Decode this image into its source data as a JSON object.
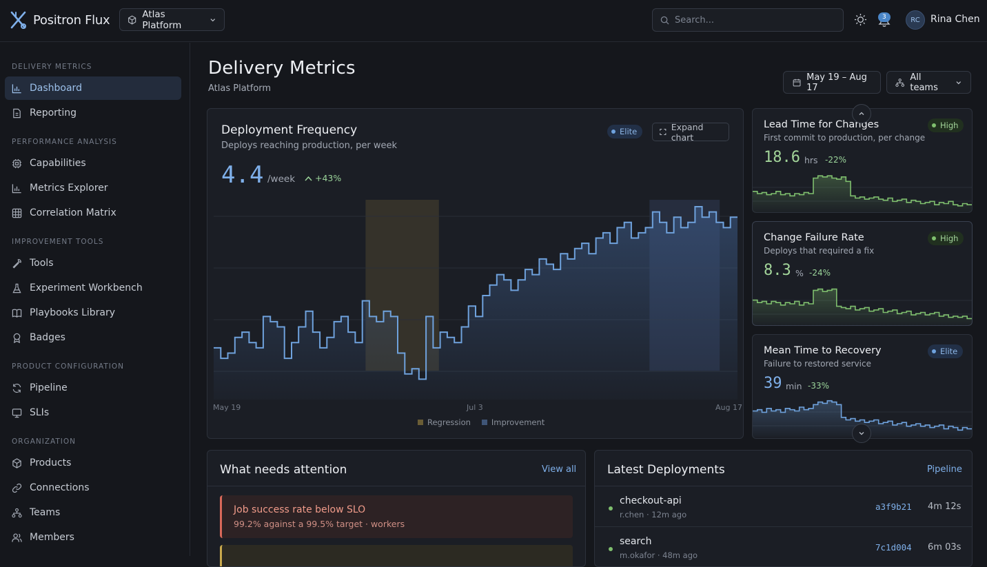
{
  "app": {
    "name": "Positron Flux",
    "project": "Atlas Platform"
  },
  "header": {
    "search_placeholder": "Search...",
    "notifications": "3",
    "user_initials": "RC",
    "user_name": "Rina Chen"
  },
  "sidebar": {
    "sections": [
      {
        "label": "DELIVERY METRICS",
        "items": [
          {
            "label": "Dashboard",
            "icon": "bar-chart-icon",
            "active": true
          },
          {
            "label": "Reporting",
            "icon": "document-icon"
          }
        ]
      },
      {
        "label": "PERFORMANCE ANALYSIS",
        "items": [
          {
            "label": "Capabilities",
            "icon": "chip-icon"
          },
          {
            "label": "Metrics Explorer",
            "icon": "bar-chart-icon"
          },
          {
            "label": "Correlation Matrix",
            "icon": "grid-icon"
          }
        ]
      },
      {
        "label": "IMPROVEMENT TOOLS",
        "items": [
          {
            "label": "Tools",
            "icon": "wrench-icon"
          },
          {
            "label": "Experiment Workbench",
            "icon": "flask-icon"
          },
          {
            "label": "Playbooks Library",
            "icon": "book-icon"
          },
          {
            "label": "Badges",
            "icon": "award-icon"
          }
        ]
      },
      {
        "label": "PRODUCT CONFIGURATION",
        "items": [
          {
            "label": "Pipeline",
            "icon": "refresh-icon"
          },
          {
            "label": "SLIs",
            "icon": "monitor-icon"
          }
        ]
      },
      {
        "label": "ORGANIZATION",
        "items": [
          {
            "label": "Products",
            "icon": "box-icon"
          },
          {
            "label": "Connections",
            "icon": "link-icon"
          },
          {
            "label": "Teams",
            "icon": "network-icon"
          },
          {
            "label": "Members",
            "icon": "users-icon"
          }
        ]
      }
    ]
  },
  "page": {
    "title": "Delivery Metrics",
    "subtitle": "Atlas Platform",
    "date_range": "May 19 – Aug 17",
    "team_filter": "All teams"
  },
  "deploy_freq": {
    "title": "Deployment Frequency",
    "subtitle": "Deploys reaching production, per week",
    "badge": "Elite",
    "expand_label": "Expand chart",
    "value": "4.4",
    "unit": "/week",
    "delta": "+43%",
    "x_labels": [
      "May 19",
      "Jul 3",
      "Aug 17"
    ],
    "legend": {
      "regression": "Regression",
      "improvement": "Improvement"
    },
    "colors": {
      "line": "#6fa2dd",
      "regression": "#4a4430",
      "improvement": "#2f3b53"
    }
  },
  "chart_data": {
    "type": "line",
    "x_start": "May 19",
    "x_end": "Aug 17",
    "regions": [
      {
        "name": "Regression",
        "from": 0.29,
        "to": 0.43
      },
      {
        "name": "Improvement",
        "from": 0.832,
        "to": 0.966
      }
    ],
    "series": [
      {
        "values": [
          1.9,
          1.7,
          1.8,
          2.1,
          2.2,
          2.0,
          1.9,
          2.5,
          2.4,
          2.3,
          1.7,
          2.0,
          2.3,
          2.6,
          2.2,
          1.9,
          2.1,
          2.4,
          2.5,
          2.2,
          2.0,
          2.8,
          2.5,
          2.4,
          2.6,
          2.5,
          1.8,
          1.4,
          1.5,
          1.3,
          2.5,
          1.9,
          2.2,
          2.1,
          2.0,
          2.3,
          2.7,
          2.5,
          2.9,
          3.1,
          3.3,
          3.2,
          3.0,
          3.2,
          3.4,
          3.3,
          3.6,
          3.5,
          3.4,
          3.7,
          3.6,
          3.8,
          3.9,
          3.7,
          4.0,
          4.1,
          3.9,
          4.2,
          4.3,
          4.0,
          4.1,
          4.2,
          4.5,
          4.3,
          4.1,
          4.4,
          4.2,
          4.3,
          4.6,
          4.4,
          4.5,
          4.3,
          4.2,
          4.4
        ]
      }
    ]
  },
  "mini_cards": [
    {
      "title": "Lead Time for Changes",
      "subtitle": "First commit to production, per change",
      "badge": "High",
      "badge_type": "high",
      "value": "18.6",
      "unit": "hrs",
      "delta": "-22%",
      "color": "#7fbf6e",
      "values": [
        24,
        22,
        23,
        21,
        22,
        24,
        21,
        22,
        20,
        22,
        21,
        23,
        22,
        36,
        38,
        37,
        38,
        36,
        35,
        37,
        33,
        20,
        18,
        19,
        17,
        18,
        19,
        17,
        16,
        18,
        15,
        16,
        17,
        14,
        16,
        15,
        13,
        14,
        15,
        12,
        14,
        13,
        15,
        12,
        11,
        13,
        12
      ]
    },
    {
      "title": "Change Failure Rate",
      "subtitle": "Deploys that required a fix",
      "badge": "High",
      "badge_type": "high",
      "value": "8.3",
      "unit": "%",
      "delta": "-24%",
      "color": "#7fbf6e",
      "values": [
        22,
        20,
        21,
        19,
        21,
        20,
        18,
        20,
        19,
        21,
        18,
        20,
        19,
        30,
        31,
        29,
        30,
        31,
        17,
        16,
        15,
        17,
        14,
        15,
        16,
        13,
        14,
        15,
        12,
        13,
        14,
        11,
        12,
        13,
        10,
        11,
        12,
        10,
        11,
        12,
        9,
        10,
        8,
        9,
        8,
        9,
        7
      ]
    },
    {
      "title": "Mean Time to Recovery",
      "subtitle": "Failure to restored service",
      "badge": "Elite",
      "badge_type": "elite",
      "value": "39",
      "unit": "min",
      "delta": "-33%",
      "color": "#6fa2dd",
      "values": [
        20,
        21,
        19,
        22,
        20,
        21,
        19,
        22,
        21,
        20,
        23,
        21,
        22,
        25,
        27,
        26,
        28,
        27,
        25,
        15,
        13,
        14,
        12,
        13,
        11,
        12,
        13,
        10,
        11,
        12,
        9,
        10,
        11,
        8,
        9,
        10,
        8,
        9,
        7,
        8,
        9,
        6,
        8,
        7,
        5,
        7,
        6
      ]
    }
  ],
  "attention": {
    "title": "What needs attention",
    "view_all": "View all",
    "items": [
      {
        "title": "Job success rate below SLO",
        "detail": "99.2% against a 99.5% target · workers",
        "level": "error"
      }
    ]
  },
  "deployments": {
    "title": "Latest Deployments",
    "link": "Pipeline",
    "rows": [
      {
        "name": "checkout-api",
        "meta": "r.chen · 12m ago",
        "hash": "a3f9b21",
        "duration": "4m 12s"
      },
      {
        "name": "search",
        "meta": "m.okafor · 48m ago",
        "hash": "7c1d004",
        "duration": "6m 03s"
      }
    ]
  }
}
